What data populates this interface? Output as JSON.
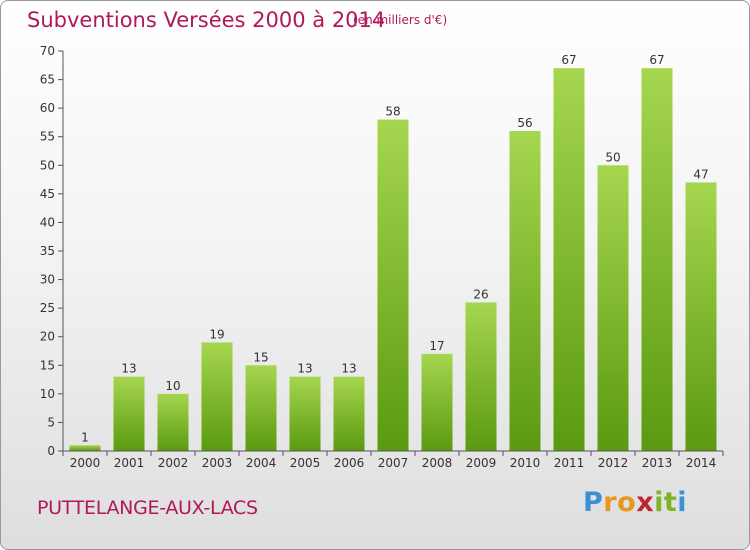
{
  "header": {
    "title": "Subventions Versées 2000 à 2014",
    "subtitle": "(en milliers d'€)"
  },
  "footer": {
    "commune": "PUTTELANGE-AUX-LACS",
    "logo_letters": [
      "P",
      "r",
      "o",
      "x",
      "i",
      "t",
      "i"
    ],
    "logo_colors": [
      "#3b8fd4",
      "#e8961e",
      "#e8961e",
      "#c0262e",
      "#7cb52a",
      "#7cb52a",
      "#3b8fd4"
    ]
  },
  "chart_data": {
    "type": "bar",
    "title": "Subventions Versées 2000 à 2014",
    "subtitle": "(en milliers d'€)",
    "xlabel": "",
    "ylabel": "",
    "categories": [
      "2000",
      "2001",
      "2002",
      "2003",
      "2004",
      "2005",
      "2006",
      "2007",
      "2008",
      "2009",
      "2010",
      "2011",
      "2012",
      "2013",
      "2014"
    ],
    "values": [
      1,
      13,
      10,
      19,
      15,
      13,
      13,
      58,
      17,
      26,
      56,
      67,
      50,
      67,
      47
    ],
    "ylim": [
      0,
      70
    ],
    "yticks": [
      0,
      5,
      10,
      15,
      20,
      25,
      30,
      35,
      40,
      45,
      50,
      55,
      60,
      65,
      70
    ],
    "grid": false,
    "colors": {
      "bar_light": "#a6d64f",
      "bar_dark": "#5a9a10",
      "axis": "#555555",
      "text": "#333333",
      "accent": "#b0185a"
    }
  }
}
